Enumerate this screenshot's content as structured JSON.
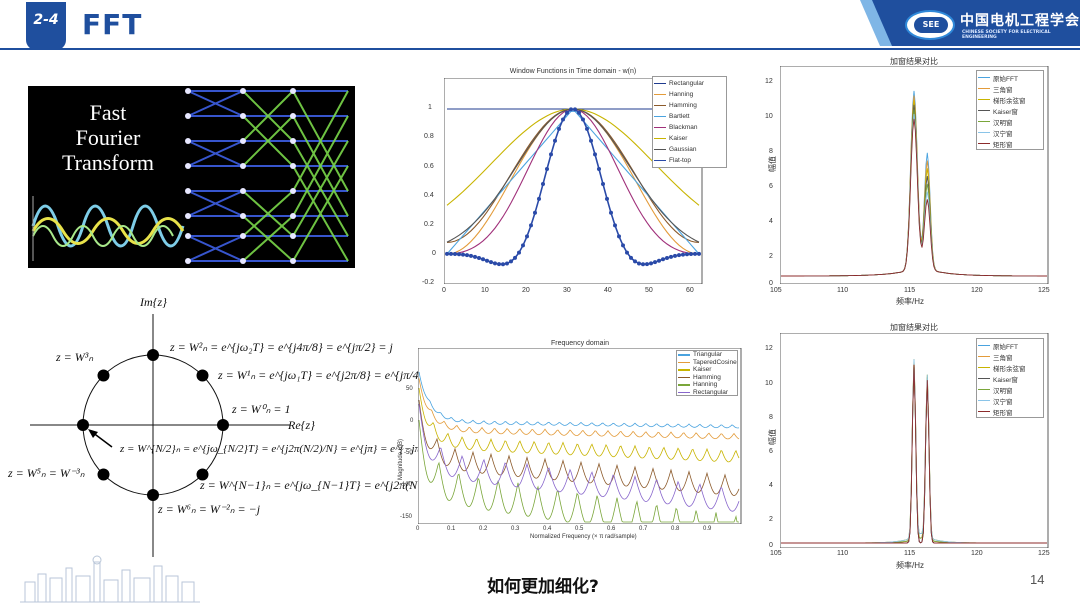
{
  "header": {
    "section_number": "2-4",
    "title": "FFT",
    "accent_color": "#1f4f9e",
    "logo_text_zh": "中国电机工程学会",
    "logo_text_en": "CHINESE SOCIETY FOR ELECTRICAL ENGINEERING",
    "logo_seal_text": "SEE"
  },
  "banner": {
    "title": "Fast\nFourier\nTransform"
  },
  "unit_circle": {
    "im_label": "Im{z}",
    "re_label": "Re{z}",
    "eq_w2": "z = W²ₙ = e^{jω₂T} = e^{j4π/8} = e^{jπ/2} = j",
    "eq_w3": "z = W³ₙ",
    "eq_w1": "z = W¹ₙ = e^{jω₁T} = e^{j2π/8} = e^{jπ/4}",
    "eq_w0": "z = W⁰ₙ = 1",
    "eq_wn2": "z = W^{N/2}ₙ = e^{jω_{N/2}T} = e^{j2π(N/2)/N} = e^{jπ} = e^{−jπ} = −1",
    "eq_w5": "z = W⁵ₙ = W⁻³ₙ",
    "eq_wn1": "z = W^{N−1}ₙ = e^{jω_{N−1}T} = e^{j2π(N−1)/N} = e^{j7π/4}",
    "eq_w6": "z = W⁶ₙ = W⁻²ₙ = −j",
    "eq_w2_main": "z = W",
    "eq_w2_rest": "= e",
    "eq_w2_tail": "= j",
    "eq_w3_main": "z = W",
    "eq_w1_main": "z = W",
    "eq_w1_rest": "= e",
    "eq_w0_main": "z = W",
    "eq_w0_tail": "= 1",
    "eq_wn2_main": "z = W",
    "eq_wn2_tail": "= e",
    "eq_wn2_end": "= −1",
    "eq_w5_main": "z = W",
    "eq_w5_mid": "= W",
    "eq_wn1_main": "z = W",
    "eq_wn1_rest": "= e",
    "eq_w6_main": "z = W",
    "eq_w6_mid": "= W",
    "eq_w6_tail": "= −j"
  },
  "window_chart": {
    "title": "Window Functions in Time domain - w(n)",
    "y_ticks": [
      "1",
      "0.8",
      "0.6",
      "0.4",
      "0.2",
      "0",
      "-0.2"
    ],
    "x_ticks": [
      "0",
      "10",
      "20",
      "30",
      "40",
      "50",
      "60"
    ],
    "legend": [
      {
        "label": "Rectangular",
        "color": "#1f3b8f"
      },
      {
        "label": "Hanning",
        "color": "#e39b3a"
      },
      {
        "label": "Hamming",
        "color": "#8c5a2b"
      },
      {
        "label": "Bartlett",
        "color": "#4aa3df"
      },
      {
        "label": "Blackman",
        "color": "#a0307a"
      },
      {
        "label": "Kaiser",
        "color": "#c8b400"
      },
      {
        "label": "Gaussian",
        "color": "#555555"
      },
      {
        "label": "Flat-top",
        "color": "#2a4aa8"
      }
    ]
  },
  "freq_chart": {
    "title": "Frequency domain",
    "y_axis_label": "Magnitude (dB)",
    "x_axis_label": "Normalized Frequency (× π rad/sample)",
    "y_ticks": [
      "50",
      "0",
      "-50",
      "-100",
      "-150"
    ],
    "x_ticks": [
      "0",
      "0.1",
      "0.2",
      "0.3",
      "0.4",
      "0.5",
      "0.6",
      "0.7",
      "0.8",
      "0.9"
    ],
    "legend": [
      {
        "label": "Triangular",
        "color": "#4aa3df"
      },
      {
        "label": "TaperedCosine",
        "color": "#e39b3a"
      },
      {
        "label": "Kaiser",
        "color": "#c8b400"
      },
      {
        "label": "Hamming",
        "color": "#8c5a2b"
      },
      {
        "label": "Hanning",
        "color": "#7aa63a"
      },
      {
        "label": "Rectangular",
        "color": "#8866cc"
      }
    ]
  },
  "compare_chart_1": {
    "title": "加窗结果对比",
    "y_axis_label": "幅值",
    "x_axis_label": "频率/Hz",
    "y_ticks": [
      "12",
      "10",
      "8",
      "6",
      "4",
      "2",
      "0"
    ],
    "x_ticks": [
      "105",
      "110",
      "115",
      "120",
      "125"
    ],
    "legend": [
      {
        "label": "原始FFT",
        "color": "#4aa3df"
      },
      {
        "label": "三角窗",
        "color": "#e39b3a"
      },
      {
        "label": "梯形余弦窗",
        "color": "#c8b400"
      },
      {
        "label": "Kaiser窗",
        "color": "#555555"
      },
      {
        "label": "汉明窗",
        "color": "#7aa63a"
      },
      {
        "label": "汉宁窗",
        "color": "#8ac4e8"
      },
      {
        "label": "矩形窗",
        "color": "#8c2b2b"
      }
    ]
  },
  "compare_chart_2": {
    "title": "加窗结果对比",
    "y_axis_label": "幅值",
    "x_axis_label": "频率/Hz",
    "y_ticks": [
      "12",
      "10",
      "8",
      "6",
      "4",
      "2",
      "0"
    ],
    "x_ticks": [
      "105",
      "110",
      "115",
      "120",
      "125"
    ],
    "legend": [
      {
        "label": "原始FFT",
        "color": "#4aa3df"
      },
      {
        "label": "三角窗",
        "color": "#e39b3a"
      },
      {
        "label": "梯形余弦窗",
        "color": "#c8b400"
      },
      {
        "label": "Kaiser窗",
        "color": "#555555"
      },
      {
        "label": "汉明窗",
        "color": "#7aa63a"
      },
      {
        "label": "汉宁窗",
        "color": "#8ac4e8"
      },
      {
        "label": "矩形窗",
        "color": "#8c2b2b"
      }
    ]
  },
  "footer": {
    "question": "如何更加细化?",
    "page_number": "14"
  }
}
